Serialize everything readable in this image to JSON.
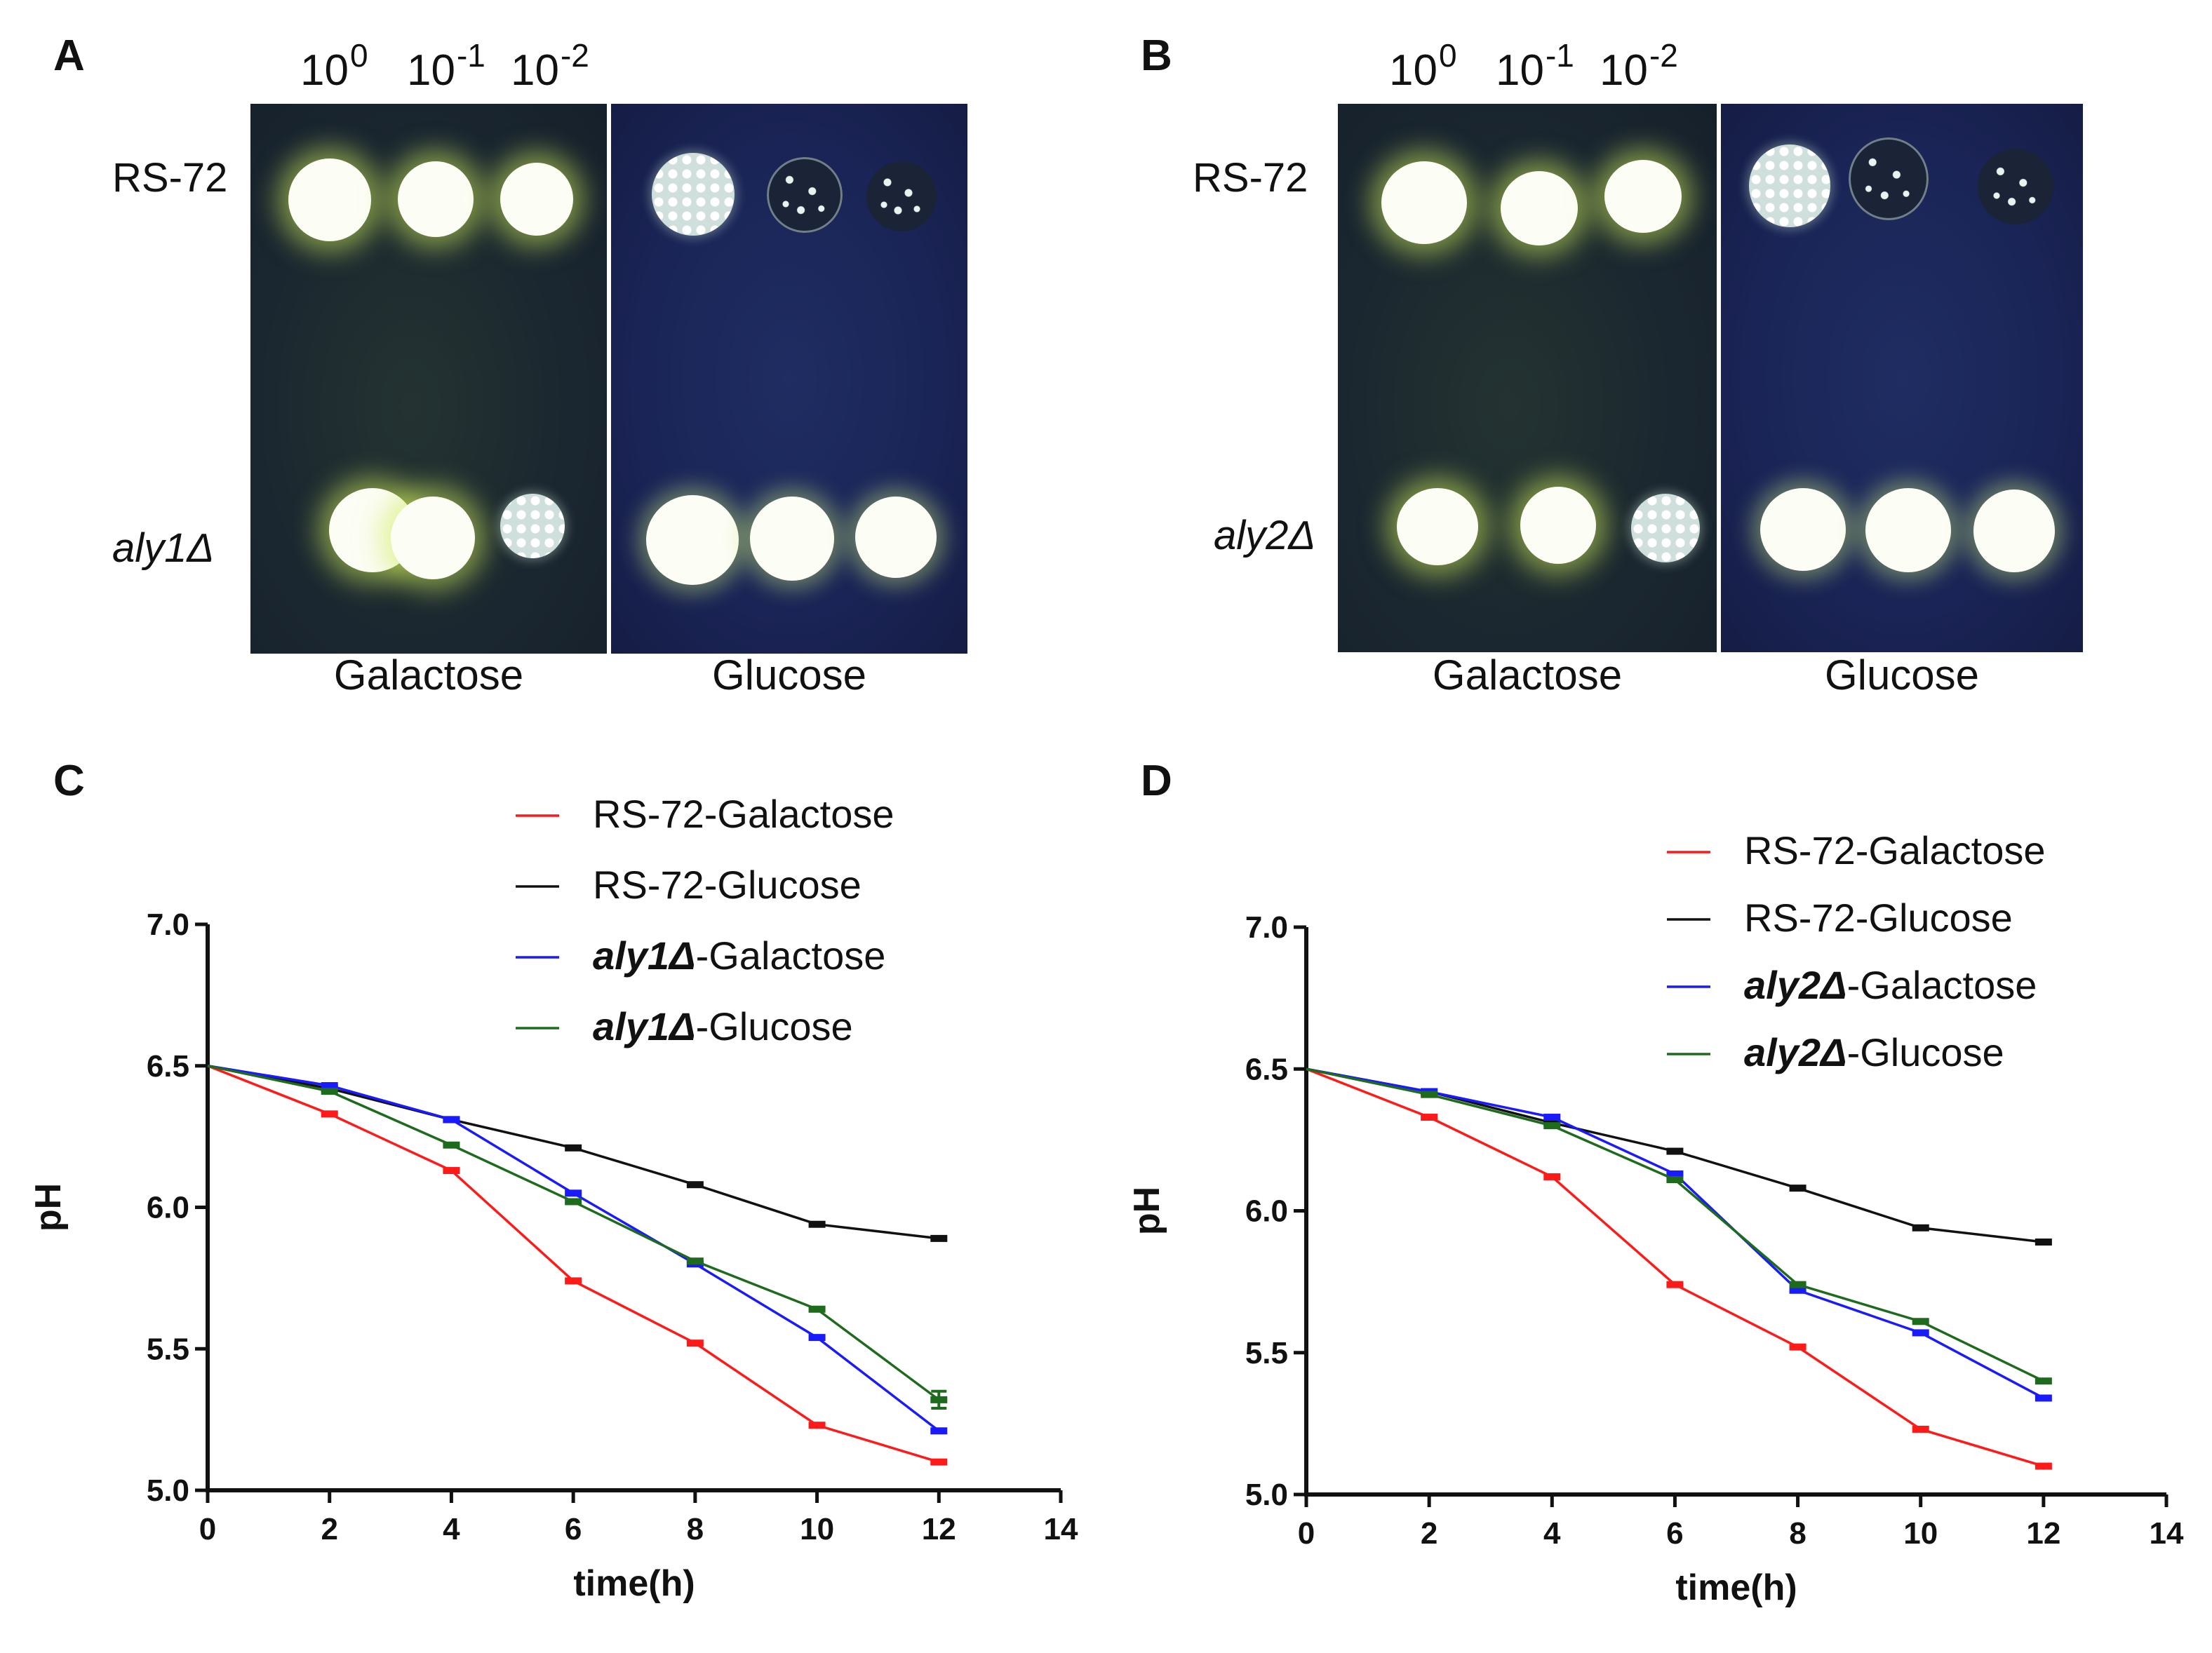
{
  "figure": {
    "panel_A": {
      "letter": "A",
      "dilutions": [
        {
          "base": "10",
          "exp": "0"
        },
        {
          "base": "10",
          "exp": "-1"
        },
        {
          "base": "10",
          "exp": "-2"
        }
      ],
      "rows": [
        {
          "label": "RS-72",
          "italic": false
        },
        {
          "label": "aly1Δ",
          "italic": true
        }
      ],
      "media": [
        "Galactose",
        "Glucose"
      ]
    },
    "panel_B": {
      "letter": "B",
      "dilutions": [
        {
          "base": "10",
          "exp": "0"
        },
        {
          "base": "10",
          "exp": "-1"
        },
        {
          "base": "10",
          "exp": "-2"
        }
      ],
      "rows": [
        {
          "label": "RS-72",
          "italic": false
        },
        {
          "label": "aly2Δ",
          "italic": true
        }
      ],
      "media": [
        "Galactose",
        "Glucose"
      ]
    },
    "panel_C": {
      "letter": "C"
    },
    "panel_D": {
      "letter": "D"
    }
  },
  "colors": {
    "red": "#ff1a1a",
    "black": "#111111",
    "blue": "#1a1aff",
    "green": "#1e6b1e",
    "galactose_plate": "#1a2630",
    "glucose_plate": "#1a2456"
  },
  "chart_data": [
    {
      "panel": "C",
      "type": "line",
      "xlabel": "time(h)",
      "ylabel": "pH",
      "xlim": [
        0,
        14
      ],
      "ylim": [
        5.0,
        7.0
      ],
      "xticks": [
        0,
        2,
        4,
        6,
        8,
        10,
        12,
        14
      ],
      "yticks": [
        "5.0",
        "5.5",
        "6.0",
        "6.5",
        "7.0"
      ],
      "x": [
        0,
        2,
        4,
        6,
        8,
        10,
        12
      ],
      "series": [
        {
          "name": "RS-72-Galactose",
          "strain": "RS-72",
          "medium": "Galactose",
          "strain_italic": false,
          "color": "#ff1a1a",
          "values": [
            6.5,
            6.33,
            6.13,
            5.74,
            5.52,
            5.23,
            5.1
          ],
          "errors": [
            0,
            0.01,
            0.01,
            0.015,
            0.015,
            0.01,
            0.01
          ]
        },
        {
          "name": "RS-72-Glucose",
          "strain": "RS-72",
          "medium": "Glucose",
          "strain_italic": false,
          "color": "#111111",
          "values": [
            6.5,
            6.42,
            6.31,
            6.21,
            6.08,
            5.94,
            5.89
          ],
          "errors": [
            0,
            0.01,
            0.01,
            0.01,
            0.01,
            0.01,
            0.01
          ]
        },
        {
          "name": "aly1Δ-Galactose",
          "strain": "aly1Δ",
          "medium": "Galactose",
          "strain_italic": true,
          "color": "#1a1aff",
          "values": [
            6.5,
            6.43,
            6.31,
            6.05,
            5.8,
            5.54,
            5.21
          ],
          "errors": [
            0,
            0.01,
            0.01,
            0.015,
            0.01,
            0.01,
            0.01
          ]
        },
        {
          "name": "aly1Δ-Glucose",
          "strain": "aly1Δ",
          "medium": "Glucose",
          "strain_italic": true,
          "color": "#1e6b1e",
          "values": [
            6.5,
            6.41,
            6.22,
            6.02,
            5.81,
            5.64,
            5.32
          ],
          "errors": [
            0,
            0.01,
            0.015,
            0.01,
            0.01,
            0.01,
            0.03
          ]
        }
      ]
    },
    {
      "panel": "D",
      "type": "line",
      "xlabel": "time(h)",
      "ylabel": "pH",
      "xlim": [
        0,
        14
      ],
      "ylim": [
        5.0,
        7.0
      ],
      "xticks": [
        0,
        2,
        4,
        6,
        8,
        10,
        12,
        14
      ],
      "yticks": [
        "5.0",
        "5.5",
        "6.0",
        "6.5",
        "7.0"
      ],
      "x": [
        0,
        2,
        4,
        6,
        8,
        10,
        12
      ],
      "series": [
        {
          "name": "RS-72-Galactose",
          "strain": "RS-72",
          "medium": "Galactose",
          "strain_italic": false,
          "color": "#ff1a1a",
          "values": [
            6.5,
            6.33,
            6.12,
            5.74,
            5.52,
            5.23,
            5.1
          ],
          "errors": [
            0,
            0.01,
            0.01,
            0.015,
            0.015,
            0.01,
            0.01
          ]
        },
        {
          "name": "RS-72-Glucose",
          "strain": "RS-72",
          "medium": "Glucose",
          "strain_italic": false,
          "color": "#111111",
          "values": [
            6.5,
            6.42,
            6.31,
            6.21,
            6.08,
            5.94,
            5.89
          ],
          "errors": [
            0,
            0.01,
            0.01,
            0.01,
            0.01,
            0.01,
            0.01
          ]
        },
        {
          "name": "aly2Δ-Galactose",
          "strain": "aly2Δ",
          "medium": "Galactose",
          "strain_italic": true,
          "color": "#1a1aff",
          "values": [
            6.5,
            6.42,
            6.33,
            6.13,
            5.72,
            5.57,
            5.34
          ],
          "errors": [
            0,
            0.01,
            0.01,
            0.01,
            0.01,
            0.015,
            0.01
          ]
        },
        {
          "name": "aly2Δ-Glucose",
          "strain": "aly2Δ",
          "medium": "Glucose",
          "strain_italic": true,
          "color": "#1e6b1e",
          "values": [
            6.5,
            6.41,
            6.3,
            6.11,
            5.74,
            5.61,
            5.4
          ],
          "errors": [
            0,
            0.01,
            0.01,
            0.01,
            0.01,
            0.01,
            0.01
          ]
        }
      ]
    }
  ]
}
